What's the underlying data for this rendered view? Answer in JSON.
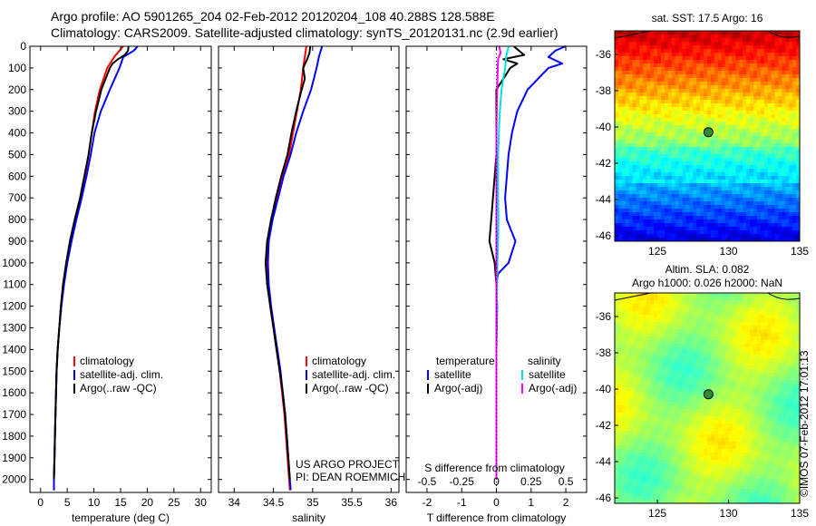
{
  "title_line1": "Argo profile: AO 5901265_204 02-Feb-2012 20120204_108 40.288S 128.588E",
  "title_line2": "Climatology: CARS2009. Satellite-adjusted climatology: synTS_20120131.nc (2.9d earlier)",
  "credit": "©IMOS 07-Feb-2012 17:01:13",
  "chart_data": [
    {
      "type": "line",
      "id": "temperature",
      "xlabel": "temperature (deg C)",
      "xlim": [
        -2,
        32
      ],
      "xticks": [
        0,
        5,
        10,
        15,
        20,
        25,
        30
      ],
      "ylim": [
        2060,
        0
      ],
      "yticks": [
        0,
        100,
        200,
        300,
        400,
        500,
        600,
        700,
        800,
        900,
        1000,
        1100,
        1200,
        1300,
        1400,
        1500,
        1600,
        1700,
        1800,
        1900,
        2000
      ],
      "legend": [
        "climatology",
        "satellite-adj. clim.",
        "Argo(..raw -QC)"
      ],
      "series": [
        {
          "name": "climatology",
          "color": "#ff0000",
          "depth": [
            0,
            50,
            100,
            200,
            300,
            400,
            500,
            600,
            700,
            800,
            900,
            1000,
            1100,
            1200,
            1300,
            1400,
            1500,
            1600,
            1700,
            1800,
            1900,
            2000,
            2050
          ],
          "values": [
            15.5,
            13.8,
            12.5,
            11.1,
            10.2,
            9.6,
            9.0,
            8.3,
            7.5,
            6.5,
            5.6,
            4.9,
            4.3,
            3.9,
            3.5,
            3.2,
            3.0,
            2.9,
            2.8,
            2.7,
            2.6,
            2.5,
            2.5
          ]
        },
        {
          "name": "satellite-adj. clim.",
          "color": "#0000ff",
          "depth": [
            0,
            20,
            50,
            100,
            200,
            300,
            400,
            500,
            600,
            700,
            800,
            900,
            1000,
            1100,
            1200,
            1300,
            1400,
            1500,
            1600,
            1700,
            1800,
            1900,
            2000,
            2050
          ],
          "values": [
            18.2,
            17.5,
            15.5,
            14.8,
            13.0,
            11.3,
            10.1,
            9.4,
            8.6,
            7.7,
            6.7,
            5.8,
            5.0,
            4.4,
            3.9,
            3.5,
            3.2,
            3.0,
            2.9,
            2.8,
            2.7,
            2.6,
            2.5,
            2.5
          ]
        },
        {
          "name": "Argo(..raw -QC)",
          "color": "#000000",
          "depth": [
            0,
            20,
            40,
            60,
            80,
            100,
            200,
            300,
            400,
            500,
            600,
            700,
            800,
            900,
            1000,
            1100,
            1200,
            1300,
            1400,
            1500,
            1600,
            1700,
            1800,
            1900,
            2000
          ],
          "values": [
            16.5,
            16.4,
            15.8,
            14.5,
            13.5,
            13.0,
            11.4,
            10.4,
            9.6,
            9.0,
            8.2,
            7.4,
            6.4,
            5.5,
            4.8,
            4.2,
            3.8,
            3.5,
            3.2,
            3.0,
            2.9,
            2.8,
            2.7,
            2.6,
            2.5
          ]
        }
      ]
    },
    {
      "type": "line",
      "id": "salinity",
      "xlabel": "salinity",
      "xlim": [
        33.8,
        36.1
      ],
      "xticks": [
        34,
        34.5,
        35,
        35.5,
        36
      ],
      "ylim": [
        2060,
        0
      ],
      "legend": [
        "climatology",
        "satellite-adj. clim.",
        "Argo(..raw -QC)"
      ],
      "annotation": [
        "US ARGO PROJECT",
        "PI: DEAN ROEMMICH"
      ],
      "series": [
        {
          "name": "climatology",
          "color": "#ff0000",
          "depth": [
            0,
            50,
            100,
            200,
            300,
            400,
            500,
            600,
            700,
            800,
            900,
            1000,
            1100,
            1200,
            1300,
            1400,
            1500,
            1600,
            1700,
            1800,
            1900,
            2000,
            2050
          ],
          "values": [
            34.92,
            34.9,
            34.88,
            34.85,
            34.8,
            34.75,
            34.7,
            34.62,
            34.55,
            34.48,
            34.43,
            34.42,
            34.43,
            34.46,
            34.5,
            34.54,
            34.58,
            34.61,
            34.64,
            34.66,
            34.68,
            34.7,
            34.71
          ]
        },
        {
          "name": "satellite-adj. clim.",
          "color": "#0000ff",
          "depth": [
            0,
            50,
            100,
            200,
            300,
            400,
            500,
            600,
            700,
            800,
            900,
            1000,
            1100,
            1200,
            1300,
            1400,
            1500,
            1600,
            1700,
            1800,
            1900,
            2000,
            2050
          ],
          "values": [
            35.12,
            35.08,
            35.05,
            34.98,
            34.88,
            34.79,
            34.72,
            34.63,
            34.56,
            34.49,
            34.44,
            34.43,
            34.44,
            34.47,
            34.51,
            34.55,
            34.59,
            34.62,
            34.65,
            34.67,
            34.69,
            34.71,
            34.72
          ]
        },
        {
          "name": "Argo(..raw -QC)",
          "color": "#000000",
          "depth": [
            0,
            30,
            60,
            100,
            150,
            200,
            300,
            400,
            500,
            600,
            700,
            800,
            900,
            1000,
            1100,
            1200,
            1300,
            1400,
            1500,
            1600,
            1700,
            1800,
            1900,
            2000
          ],
          "values": [
            34.97,
            34.96,
            34.93,
            34.88,
            34.9,
            34.86,
            34.79,
            34.73,
            34.68,
            34.6,
            34.53,
            34.47,
            34.42,
            34.4,
            34.42,
            34.46,
            34.5,
            34.54,
            34.58,
            34.62,
            34.65,
            34.67,
            34.69,
            34.71
          ]
        }
      ]
    },
    {
      "type": "line",
      "id": "difference",
      "xlabel": "T difference from climatology",
      "xlabel_top": "S difference from climatology",
      "xlim": [
        -2.6,
        2.6
      ],
      "xticks": [
        -2,
        -1,
        0,
        1,
        2
      ],
      "xticks_top": [
        "-0.5",
        "-0.25",
        "0",
        "0.25",
        "0.5"
      ],
      "ylim": [
        2060,
        0
      ],
      "legend_title_left": "temperature",
      "legend_title_right": "salinity",
      "legend": [
        "satellite",
        "Argo(-adj)",
        "satellite",
        "Argo(-adj)"
      ],
      "series": [
        {
          "name": "T satellite",
          "color": "#0000ff",
          "depth": [
            0,
            20,
            50,
            80,
            100,
            200,
            300,
            400,
            500,
            600,
            700,
            800,
            900,
            1000,
            1050,
            1100,
            1200,
            1400,
            1600,
            1800,
            2000
          ],
          "values": [
            2.0,
            1.7,
            1.5,
            1.9,
            1.5,
            0.9,
            0.6,
            0.45,
            0.35,
            0.3,
            0.25,
            0.3,
            0.55,
            0.35,
            0.05,
            0.0,
            0.02,
            0.0,
            0.0,
            0.0,
            0.0
          ]
        },
        {
          "name": "T Argo(-adj)",
          "color": "#000000",
          "depth": [
            0,
            40,
            60,
            80,
            100,
            200,
            300,
            400,
            500,
            600,
            700,
            800,
            900,
            1000,
            1100,
            1200,
            1400,
            1600,
            1800,
            2000
          ],
          "values": [
            0.5,
            0.8,
            0.2,
            0.6,
            0.4,
            0.0,
            0.0,
            0.0,
            0.0,
            -0.05,
            -0.1,
            -0.15,
            -0.2,
            -0.05,
            0.0,
            0.0,
            0.0,
            0.0,
            0.0,
            0.0
          ]
        },
        {
          "name": "S satellite",
          "color": "#00e0e0",
          "depth": [
            0,
            50,
            100,
            200,
            300,
            400,
            500,
            600,
            700,
            800,
            900,
            1000,
            1100,
            1200,
            1400,
            1600,
            1800,
            2000
          ],
          "values": [
            0.35,
            0.28,
            0.25,
            0.15,
            0.1,
            0.07,
            0.05,
            0.05,
            0.05,
            0.06,
            0.05,
            0.03,
            0.02,
            0.01,
            0.0,
            0.0,
            0.0,
            0.0
          ]
        },
        {
          "name": "S Argo(-adj)",
          "color": "#ff00ff",
          "depth": [
            0,
            30,
            60,
            100,
            200,
            300,
            400,
            500,
            600,
            700,
            800,
            1000,
            1200,
            1400,
            1600,
            1800,
            2000
          ],
          "values": [
            0.08,
            0.12,
            0.05,
            0.04,
            0.02,
            0.01,
            0.0,
            0.0,
            0.0,
            0.0,
            0.0,
            0.0,
            0.0,
            0.0,
            0.0,
            0.0,
            0.0
          ]
        }
      ]
    },
    {
      "type": "heatmap",
      "id": "sst-map",
      "title": "sat. SST: 17.5 Argo: 16",
      "xlim": [
        122,
        135
      ],
      "ylim": [
        -46.3,
        -34.7
      ],
      "xticks": [
        125,
        130,
        135
      ],
      "yticks": [
        -36,
        -38,
        -40,
        -42,
        -44,
        -46
      ],
      "marker": {
        "lon": 128.588,
        "lat": -40.288
      },
      "colormap": "jet"
    },
    {
      "type": "heatmap",
      "id": "sla-map",
      "title": "Altim. SLA: 0.082",
      "subtitle": "Argo h1000: 0.026 h2000: NaN",
      "xlim": [
        122,
        135
      ],
      "ylim": [
        -46.3,
        -34.7
      ],
      "xticks": [
        125,
        130,
        135
      ],
      "yticks": [
        -36,
        -38,
        -40,
        -42,
        -44,
        -46
      ],
      "marker": {
        "lon": 128.588,
        "lat": -40.288
      },
      "colormap": "jet"
    }
  ]
}
